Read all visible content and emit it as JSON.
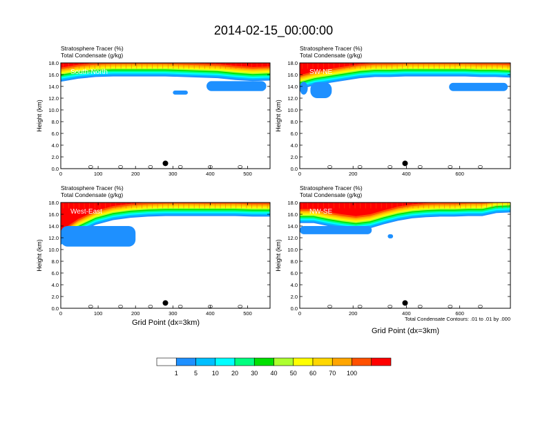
{
  "figure": {
    "title": "2014-02-15_00:00:00",
    "note": "Total Condensate Contours: .01 to .01 by .000",
    "xlabel": "Grid Point (dx=3km)",
    "ylabel": "Height (km)"
  },
  "colorbar": {
    "colors": [
      "#ffffff",
      "#1e90ff",
      "#00bfff",
      "#00ffff",
      "#00ff7f",
      "#00e000",
      "#adff2f",
      "#ffff00",
      "#ffd700",
      "#ffa500",
      "#ff5000",
      "#ff0000"
    ],
    "labels": [
      "1",
      "5",
      "10",
      "20",
      "30",
      "40",
      "50",
      "60",
      "70",
      "100"
    ]
  },
  "chart_data": [
    {
      "type": "heatmap",
      "panel": "South-North",
      "label": "South-North",
      "field_title_1": "Stratosphere Tracer   (%)",
      "field_title_2": "Total Condensate   (g/kg)",
      "xlim": [
        0,
        560
      ],
      "ylim": [
        0,
        18
      ],
      "xticks": [
        "0",
        "100",
        "200",
        "300",
        "400",
        "500"
      ],
      "yticks": [
        "0.0",
        "2.0",
        "4.0",
        "6.0",
        "8.0",
        "10.0",
        "12.0",
        "14.0",
        "16.0",
        "18.0"
      ],
      "tracer_top_km": [
        14.8,
        15.3,
        15.6,
        15.7,
        15.7,
        15.7,
        15.7,
        15.6,
        15.5,
        15.4,
        15.1,
        14.9,
        15.0
      ],
      "cloud_layers": [
        {
          "x": [
            300,
            340
          ],
          "base_km": 12.6,
          "top_km": 13.3
        },
        {
          "x": [
            390,
            550
          ],
          "base_km": 13.2,
          "top_km": 14.9
        }
      ],
      "marker_x": 280
    },
    {
      "type": "heatmap",
      "panel": "SW-NE",
      "label": "SW-NE",
      "field_title_1": "Stratosphere Tracer   (%)",
      "field_title_2": "Total Condensate   (g/kg)",
      "xlim": [
        0,
        790
      ],
      "ylim": [
        0,
        18
      ],
      "xticks": [
        "0",
        "200",
        "400",
        "600"
      ],
      "yticks": [
        "0.0",
        "2.0",
        "4.0",
        "6.0",
        "8.0",
        "10.0",
        "12.0",
        "14.0",
        "16.0",
        "18.0"
      ],
      "tracer_top_km": [
        13.5,
        14.2,
        14.6,
        15.0,
        15.4,
        15.6,
        15.6,
        15.7,
        15.7,
        15.7,
        15.7,
        15.7,
        15.6,
        15.6,
        15.5
      ],
      "cloud_layers": [
        {
          "x": [
            0,
            30
          ],
          "base_km": 12.6,
          "top_km": 14.8
        },
        {
          "x": [
            40,
            120
          ],
          "base_km": 12.0,
          "top_km": 14.7
        },
        {
          "x": [
            560,
            780
          ],
          "base_km": 13.2,
          "top_km": 14.6
        }
      ],
      "marker_x": 395
    },
    {
      "type": "heatmap",
      "panel": "West-East",
      "label": "West-East",
      "field_title_1": "Stratosphere Tracer   (%)",
      "field_title_2": "Total Condensate   (g/kg)",
      "xlim": [
        0,
        560
      ],
      "ylim": [
        0,
        18
      ],
      "xticks": [
        "0",
        "100",
        "200",
        "300",
        "400",
        "500"
      ],
      "yticks": [
        "0.0",
        "2.0",
        "4.0",
        "6.0",
        "8.0",
        "10.0",
        "12.0",
        "14.0",
        "16.0",
        "18.0"
      ],
      "tracer_top_km": [
        10.8,
        12.8,
        14.2,
        15.0,
        15.4,
        15.6,
        15.7,
        15.7,
        15.7,
        15.7,
        15.7,
        15.6,
        15.6
      ],
      "cloud_layers": [
        {
          "x": [
            0,
            200
          ],
          "base_km": 10.5,
          "top_km": 14.0
        }
      ],
      "marker_x": 280
    },
    {
      "type": "heatmap",
      "panel": "NW-SE",
      "label": "NW-SE",
      "field_title_1": "Stratosphere Tracer   (%)",
      "field_title_2": "Total Condensate   (g/kg)",
      "xlim": [
        0,
        790
      ],
      "ylim": [
        0,
        18
      ],
      "xticks": [
        "0",
        "200",
        "400",
        "600"
      ],
      "yticks": [
        "0.0",
        "2.0",
        "4.0",
        "6.0",
        "8.0",
        "10.0",
        "12.0",
        "14.0",
        "16.0",
        "18.0"
      ],
      "tracer_top_km": [
        14.5,
        14.5,
        14.0,
        13.6,
        13.3,
        13.6,
        14.3,
        14.9,
        15.3,
        15.5,
        15.6,
        15.6,
        15.7,
        15.7,
        16.2,
        16.3
      ],
      "cloud_layers": [
        {
          "x": [
            0,
            270
          ],
          "base_km": 12.6,
          "top_km": 14.0
        },
        {
          "x": [
            330,
            350
          ],
          "base_km": 11.9,
          "top_km": 12.6
        }
      ],
      "marker_x": 395
    }
  ]
}
